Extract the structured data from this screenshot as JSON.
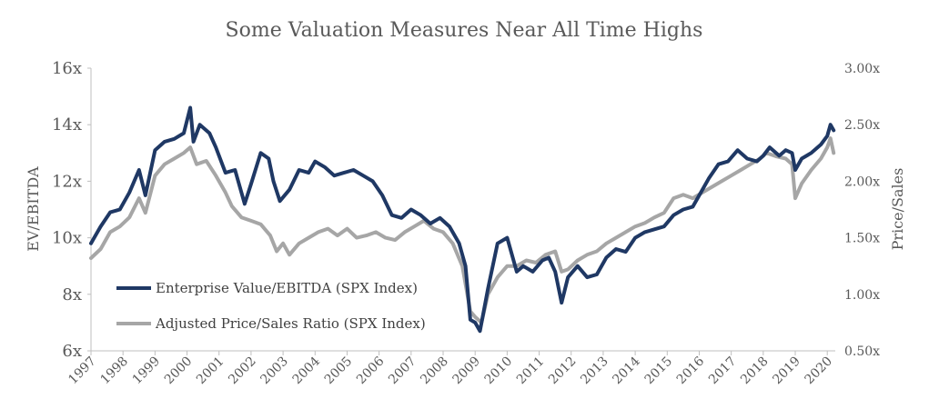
{
  "chart_data": {
    "type": "line",
    "title": "Some Valuation Measures Near All Time Highs",
    "ylabel_left": "EV/EBITDA",
    "ylabel_right": "Price/Sales",
    "y_left_range": [
      6,
      16
    ],
    "y_left_ticks": [
      "6x",
      "8x",
      "10x",
      "12x",
      "14x",
      "16x"
    ],
    "y_right_range": [
      0.5,
      3.0
    ],
    "y_right_ticks": [
      "0.50x",
      "1.00x",
      "1.50x",
      "2.00x",
      "2.50x",
      "3.00x"
    ],
    "x_range": [
      1997,
      2020.25
    ],
    "x_ticks": [
      "1997",
      "1998",
      "1999",
      "2000",
      "2001",
      "2002",
      "2003",
      "2004",
      "2005",
      "2006",
      "2007",
      "2008",
      "2009",
      "2010",
      "2011",
      "2012",
      "2013",
      "2014",
      "2015",
      "2016",
      "2017",
      "2018",
      "2019",
      "2020"
    ],
    "grid": false,
    "legend_position": "lower-left",
    "series": [
      {
        "name": "Enterprise Value/EBITDA (SPX Index)",
        "axis": "left",
        "color": "#1f3864",
        "x": [
          1997.0,
          1997.3,
          1997.6,
          1997.9,
          1998.2,
          1998.5,
          1998.7,
          1999.0,
          1999.3,
          1999.6,
          1999.9,
          2000.1,
          2000.2,
          2000.4,
          2000.7,
          2000.9,
          2001.2,
          2001.5,
          2001.8,
          2002.0,
          2002.3,
          2002.55,
          2002.7,
          2002.9,
          2003.2,
          2003.5,
          2003.8,
          2004.0,
          2004.3,
          2004.6,
          2004.9,
          2005.2,
          2005.5,
          2005.8,
          2006.1,
          2006.4,
          2006.7,
          2007.0,
          2007.3,
          2007.6,
          2007.9,
          2008.2,
          2008.5,
          2008.7,
          2008.85,
          2009.0,
          2009.15,
          2009.4,
          2009.7,
          2010.0,
          2010.3,
          2010.5,
          2010.8,
          2011.1,
          2011.3,
          2011.5,
          2011.7,
          2011.9,
          2012.2,
          2012.5,
          2012.8,
          2013.1,
          2013.4,
          2013.7,
          2014.0,
          2014.3,
          2014.6,
          2014.9,
          2015.2,
          2015.5,
          2015.8,
          2016.0,
          2016.3,
          2016.6,
          2016.9,
          2017.2,
          2017.5,
          2017.8,
          2018.0,
          2018.2,
          2018.5,
          2018.7,
          2018.9,
          2019.0,
          2019.2,
          2019.5,
          2019.8,
          2020.0,
          2020.1,
          2020.2
        ],
        "values": [
          9.8,
          10.4,
          10.9,
          11.0,
          11.6,
          12.4,
          11.5,
          13.1,
          13.4,
          13.5,
          13.7,
          14.6,
          13.4,
          14.0,
          13.7,
          13.2,
          12.3,
          12.4,
          11.2,
          11.9,
          13.0,
          12.8,
          12.0,
          11.3,
          11.7,
          12.4,
          12.3,
          12.7,
          12.5,
          12.2,
          12.3,
          12.4,
          12.2,
          12.0,
          11.5,
          10.8,
          10.7,
          11.0,
          10.8,
          10.5,
          10.7,
          10.4,
          9.8,
          9.0,
          7.1,
          7.0,
          6.7,
          8.2,
          9.8,
          10.0,
          8.8,
          9.0,
          8.8,
          9.2,
          9.3,
          8.8,
          7.7,
          8.6,
          9.0,
          8.6,
          8.7,
          9.3,
          9.6,
          9.5,
          10.0,
          10.2,
          10.3,
          10.4,
          10.8,
          11.0,
          11.1,
          11.5,
          12.1,
          12.6,
          12.7,
          13.1,
          12.8,
          12.7,
          12.9,
          13.2,
          12.9,
          13.1,
          13.0,
          12.4,
          12.8,
          13.0,
          13.3,
          13.6,
          14.0,
          13.8
        ]
      },
      {
        "name": "Adjusted Price/Sales Ratio (SPX Index)",
        "axis": "right",
        "color": "#a6a6a6",
        "x": [
          1997.0,
          1997.3,
          1997.6,
          1997.9,
          1998.2,
          1998.5,
          1998.7,
          1999.0,
          1999.3,
          1999.6,
          1999.9,
          2000.1,
          2000.3,
          2000.6,
          2000.9,
          2001.2,
          2001.4,
          2001.7,
          2002.0,
          2002.3,
          2002.6,
          2002.8,
          2003.0,
          2003.2,
          2003.5,
          2003.8,
          2004.1,
          2004.4,
          2004.7,
          2005.0,
          2005.3,
          2005.6,
          2005.9,
          2006.2,
          2006.5,
          2006.8,
          2007.1,
          2007.4,
          2007.7,
          2008.0,
          2008.3,
          2008.6,
          2008.85,
          2009.0,
          2009.2,
          2009.4,
          2009.7,
          2010.0,
          2010.3,
          2010.6,
          2010.9,
          2011.2,
          2011.5,
          2011.7,
          2011.9,
          2012.2,
          2012.5,
          2012.8,
          2013.1,
          2013.4,
          2013.7,
          2014.0,
          2014.3,
          2014.6,
          2014.9,
          2015.2,
          2015.5,
          2015.8,
          2016.1,
          2016.4,
          2016.7,
          2017.0,
          2017.3,
          2017.6,
          2017.9,
          2018.1,
          2018.4,
          2018.7,
          2018.9,
          2019.0,
          2019.2,
          2019.5,
          2019.8,
          2020.0,
          2020.1,
          2020.2
        ],
        "values": [
          1.32,
          1.4,
          1.55,
          1.6,
          1.68,
          1.85,
          1.72,
          2.05,
          2.15,
          2.2,
          2.25,
          2.3,
          2.15,
          2.18,
          2.05,
          1.9,
          1.78,
          1.68,
          1.65,
          1.62,
          1.52,
          1.38,
          1.45,
          1.35,
          1.45,
          1.5,
          1.55,
          1.58,
          1.52,
          1.58,
          1.5,
          1.52,
          1.55,
          1.5,
          1.48,
          1.55,
          1.6,
          1.65,
          1.58,
          1.55,
          1.45,
          1.25,
          0.85,
          0.8,
          0.75,
          1.0,
          1.15,
          1.25,
          1.25,
          1.3,
          1.28,
          1.35,
          1.38,
          1.2,
          1.22,
          1.3,
          1.35,
          1.38,
          1.45,
          1.5,
          1.55,
          1.6,
          1.63,
          1.68,
          1.72,
          1.85,
          1.88,
          1.85,
          1.9,
          1.95,
          2.0,
          2.05,
          2.1,
          2.15,
          2.2,
          2.25,
          2.22,
          2.2,
          2.15,
          1.85,
          1.98,
          2.1,
          2.2,
          2.3,
          2.38,
          2.25
        ]
      }
    ]
  }
}
